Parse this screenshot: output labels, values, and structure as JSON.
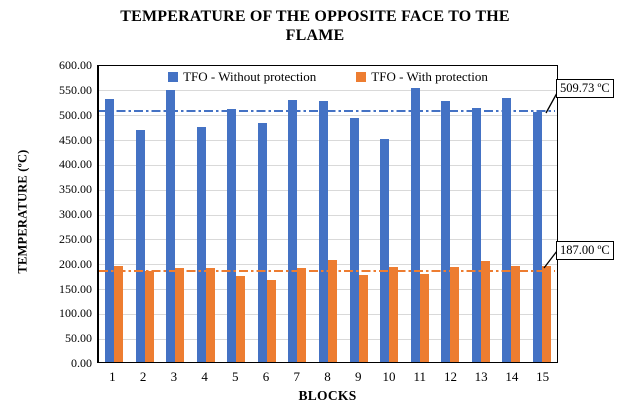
{
  "title": {
    "line1": "TEMPERATURE OF THE OPPOSITE FACE TO THE",
    "line2": "FLAME"
  },
  "chart_data": {
    "type": "bar",
    "title": "TEMPERATURE OF THE OPPOSITE FACE TO THE FLAME",
    "xlabel": "BLOCKS",
    "ylabel": "TEMPERATURE (ºC)",
    "ylim": [
      0,
      600
    ],
    "ytick_step": 50,
    "ytick_labels": [
      "600.00",
      "550.00",
      "500.00",
      "450.00",
      "400.00",
      "350.00",
      "300.00",
      "250.00",
      "200.00",
      "150.00",
      "100.00",
      "50.00",
      "0.00"
    ],
    "grid": "horizontal",
    "gridline_color": "#d9d9d9",
    "legend_position": "top-inside",
    "categories": [
      "1",
      "2",
      "3",
      "4",
      "5",
      "6",
      "7",
      "8",
      "9",
      "10",
      "11",
      "12",
      "13",
      "14",
      "15"
    ],
    "series": [
      {
        "name": "TFO - Without protection",
        "color": "#4472C4",
        "values": [
          533,
          470,
          551,
          477,
          512,
          485,
          531,
          529,
          494,
          452,
          555,
          530,
          515,
          535,
          507
        ]
      },
      {
        "name": "TFO - With protection",
        "color": "#ED7D31",
        "values": [
          195,
          184,
          190,
          191,
          175,
          167,
          191,
          206,
          177,
          192,
          179,
          193,
          205,
          194,
          194
        ]
      }
    ],
    "reference_lines": [
      {
        "label": "509.73 ºC",
        "value": 509.73,
        "color": "#4472C4",
        "style": "dash-dot"
      },
      {
        "label": "187.00 ºC",
        "value": 187.0,
        "color": "#ED7D31",
        "style": "dash-dot"
      }
    ]
  }
}
